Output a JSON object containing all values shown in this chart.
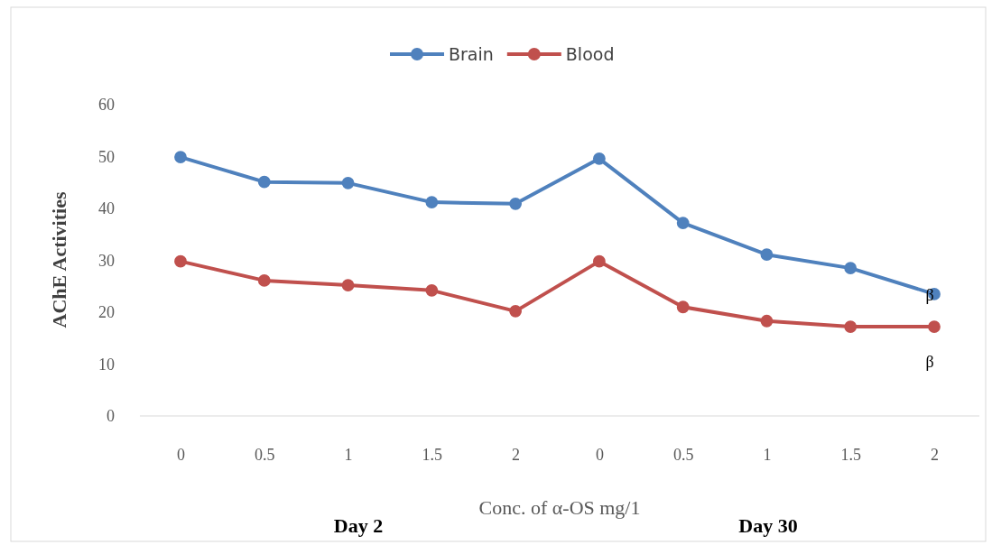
{
  "chart_data": {
    "type": "line",
    "xlabel": "Conc. of α-OS mg/1",
    "ylabel": "AChE Activities",
    "categories": [
      "0",
      "0.5",
      "1",
      "1.5",
      "2",
      "0",
      "0.5",
      "1",
      "1.5",
      "2"
    ],
    "series": [
      {
        "name": "Brain",
        "color": "#4f81bd",
        "values": [
          49.9,
          45.1,
          44.9,
          41.2,
          40.9,
          49.6,
          37.2,
          31.1,
          28.5,
          23.5
        ]
      },
      {
        "name": "Blood",
        "color": "#c0504d",
        "values": [
          29.8,
          26.1,
          25.2,
          24.2,
          20.2,
          29.8,
          21.0,
          18.3,
          17.2,
          17.2
        ]
      }
    ],
    "ylim": [
      0,
      60
    ],
    "yticks": [
      0,
      10,
      20,
      30,
      40,
      50,
      60
    ],
    "grid": false,
    "legend": "top",
    "marker": "circle",
    "line_style": "solid",
    "annotations": [
      "β",
      "β",
      "Day 2",
      "Day 30"
    ]
  }
}
